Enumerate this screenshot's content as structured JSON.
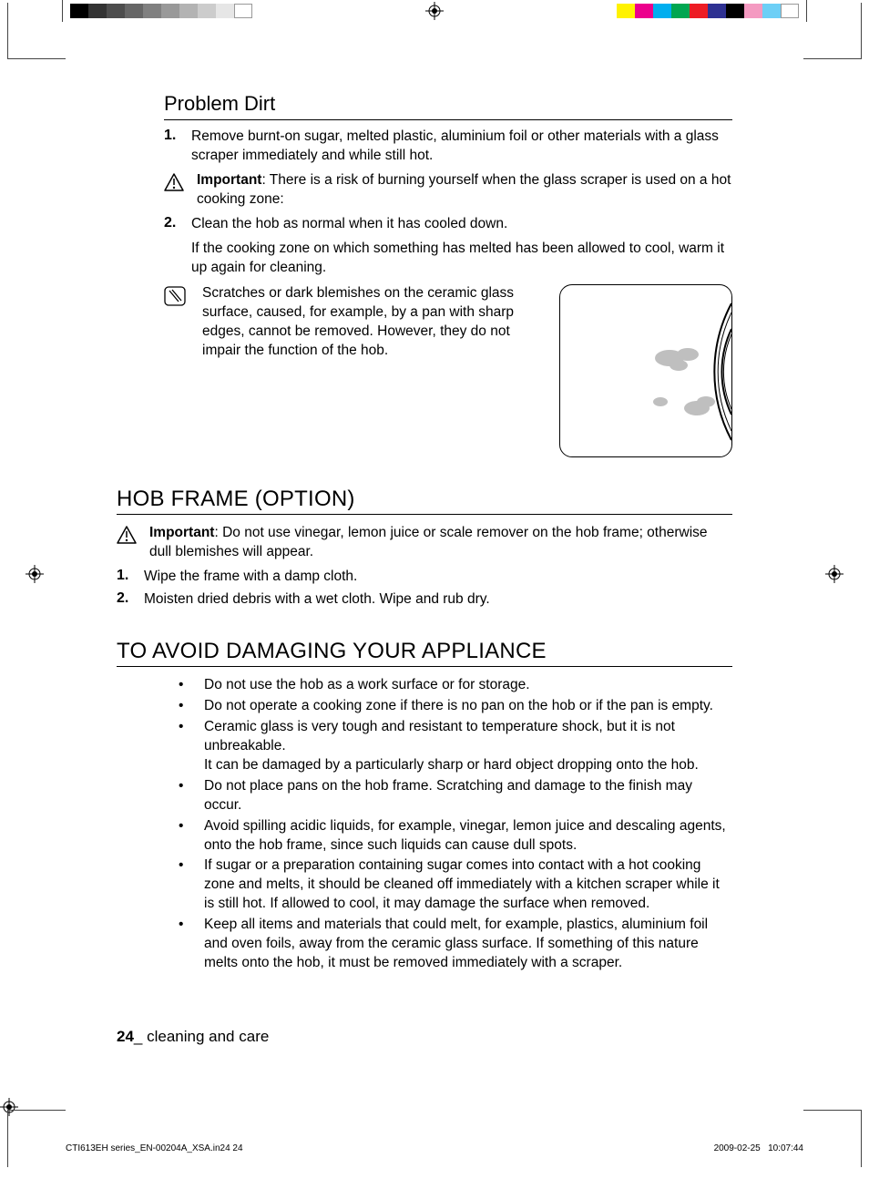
{
  "reg_strip": {
    "gray_swatches": [
      "#000000",
      "#333333",
      "#4d4d4d",
      "#666666",
      "#808080",
      "#999999",
      "#b3b3b3",
      "#cccccc",
      "#e6e6e6",
      "#ffffff"
    ],
    "color_swatches": [
      "#fff200",
      "#ec008c",
      "#00aeef",
      "#00a651",
      "#ed1c24",
      "#2e3192",
      "#000000",
      "#f49ac1",
      "#6dcff6",
      "#ffffff"
    ]
  },
  "problem_dirt": {
    "heading": "Problem Dirt",
    "step1_num": "1.",
    "step1": "Remove burnt-on sugar, melted plastic, aluminium foil or other materials with a glass scraper immediately and while still hot.",
    "important_label": "Important",
    "important_body": ": There is a risk of burning yourself when the glass scraper is used on a hot cooking zone:",
    "step2_num": "2.",
    "step2": "Clean the hob as normal when it has cooled down.",
    "step2_detail": "If the cooking zone on which something has melted has been allowed to cool, warm it up again for cleaning.",
    "scratch_note": "Scratches or dark blemishes on the ceramic glass surface, caused, for example, by a pan with sharp edges, cannot be removed. However, they do not impair the function of the hob."
  },
  "hob_frame": {
    "heading": "HOB FRAME (OPTION)",
    "important_label": "Important",
    "important_body": ": Do not use vinegar, lemon juice or scale remover on the hob frame; otherwise dull blemishes will appear.",
    "step1_num": "1.",
    "step1": "Wipe the frame with a damp cloth.",
    "step2_num": "2.",
    "step2": "Moisten dried debris with a wet cloth. Wipe and rub dry."
  },
  "avoid_damage": {
    "heading": "TO AVOID DAMAGING YOUR APPLIANCE",
    "b1": "Do not use the hob as a work surface or for storage.",
    "b2": "Do not operate a cooking zone if there is no pan on the hob or if the pan  is empty.",
    "b3a": "Ceramic glass is very tough and resistant to temperature shock, but it is not unbreakable.",
    "b3b": "It can be damaged by a particularly sharp or hard object dropping onto the hob.",
    "b4": "Do not place pans on the hob frame. Scratching and damage to the finish may occur.",
    "b5": "Avoid spilling acidic liquids, for example, vinegar, lemon juice and descaling agents, onto the hob frame, since such liquids can cause dull spots.",
    "b6": "If sugar or a preparation containing sugar comes into contact with a hot cooking zone and melts, it should be cleaned off immediately with a kitchen scraper while it is still hot. If allowed to cool, it may damage the surface when removed.",
    "b7": "Keep all items and materials that could melt, for example, plastics, aluminium foil and oven foils, away from the ceramic glass surface. If something of this nature melts onto the hob, it must be removed immediately with a scraper."
  },
  "footer": {
    "page_num": "24",
    "section": "_ cleaning and care"
  },
  "slug": {
    "file": "CTI613EH series_EN-00204A_XSA.in24   24",
    "date": "2009-02-25",
    "time": "10:07:44"
  }
}
